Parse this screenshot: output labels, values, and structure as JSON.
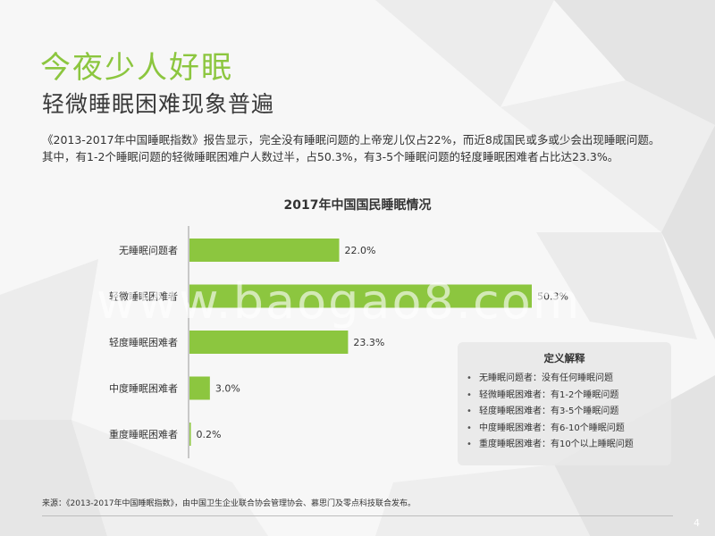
{
  "title": "今夜少人好眠",
  "subtitle": "轻微睡眠困难现象普遍",
  "description": [
    "《2013-2017年中国睡眠指数》报告显示，完全没有睡眠问题的上帝宠儿仅占22%，而近8成国民或多或少会出现睡眠问题。",
    "其中，有1-2个睡眠问题的轻微睡眠困难户人数过半，占50.3%，有3-5个睡眠问题的轻度睡眠困难者占比达23.3%。"
  ],
  "chart_data": {
    "type": "bar",
    "orientation": "horizontal",
    "title": "2017年中国国民睡眠情况",
    "categories": [
      "无睡眠问题者",
      "轻微睡眠困难者",
      "轻度睡眠困难者",
      "中度睡眠困难者",
      "重度睡眠困难者"
    ],
    "values": [
      22.0,
      50.3,
      23.3,
      3.0,
      0.2
    ],
    "value_labels": [
      "22.0%",
      "50.3%",
      "23.3%",
      "3.0%",
      "0.2%"
    ],
    "xlim": [
      0,
      50.3
    ],
    "bar_color": "#8cc63f",
    "grid": false,
    "legend": "none"
  },
  "definitions": {
    "title": "定义解释",
    "bullet": "•",
    "items": [
      "无睡眠问题者：没有任何睡眠问题",
      "轻微睡眠困难者：有1-2个睡眠问题",
      "轻度睡眠困难者：有3-5个睡眠问题",
      "中度睡眠困难者：有6-10个睡眠问题",
      "重度睡眠困难者：有10个以上睡眠问题"
    ]
  },
  "source": "来源：《2013-2017年中国睡眠指数》，由中国卫生企业联合协会管理协会、慕思门及零点科技联合发布。",
  "watermark": "www.baogao8.com",
  "page_number": "4",
  "colors": {
    "accent": "#8cc63f",
    "text": "#333333"
  }
}
